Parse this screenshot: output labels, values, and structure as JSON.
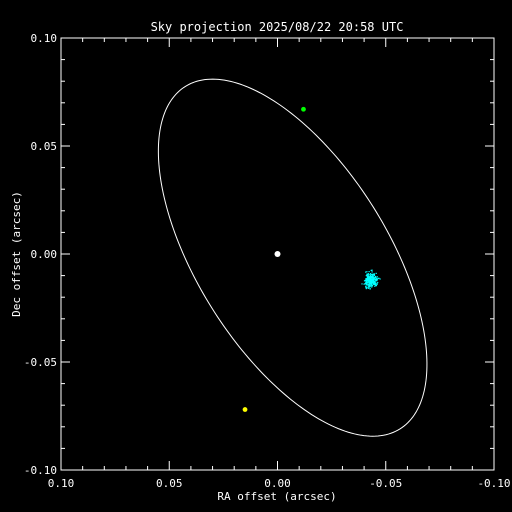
{
  "chart_data": {
    "type": "scatter",
    "title": "Sky projection 2025/08/22 20:58 UTC",
    "xlabel": "RA offset (arcsec)",
    "ylabel": "Dec offset (arcsec)",
    "xlim": [
      0.1,
      -0.1
    ],
    "ylim": [
      -0.1,
      0.1
    ],
    "xticks": [
      0.1,
      0.05,
      0.0,
      -0.05,
      -0.1
    ],
    "yticks": [
      -0.1,
      -0.05,
      0.0,
      0.05,
      0.1
    ],
    "xtick_labels": [
      "0.10",
      "0.05",
      "0.00",
      "-0.05",
      "-0.10"
    ],
    "ytick_labels": [
      "-0.10",
      "-0.05",
      "0.00",
      "0.05",
      "0.10"
    ],
    "grid": false,
    "background": "#000000",
    "foreground": "#ffffff",
    "orbit": {
      "color": "#ffffff",
      "center": [
        -0.007,
        -0.0017
      ],
      "semi_major": 0.0935,
      "semi_minor": 0.044,
      "tilt_deg": 58
    },
    "markers": [
      {
        "x": 0.0,
        "y": 0.0,
        "color": "#ffffff",
        "shape": "dot"
      },
      {
        "x": -0.012,
        "y": 0.067,
        "color": "#00ff00",
        "shape": "dot"
      },
      {
        "x": 0.015,
        "y": -0.072,
        "color": "#ffff00",
        "shape": "dot"
      }
    ],
    "cluster": {
      "color": "#00ffff",
      "center": [
        -0.043,
        -0.012
      ],
      "spread": [
        0.0022,
        0.0025
      ],
      "count": 300
    }
  }
}
